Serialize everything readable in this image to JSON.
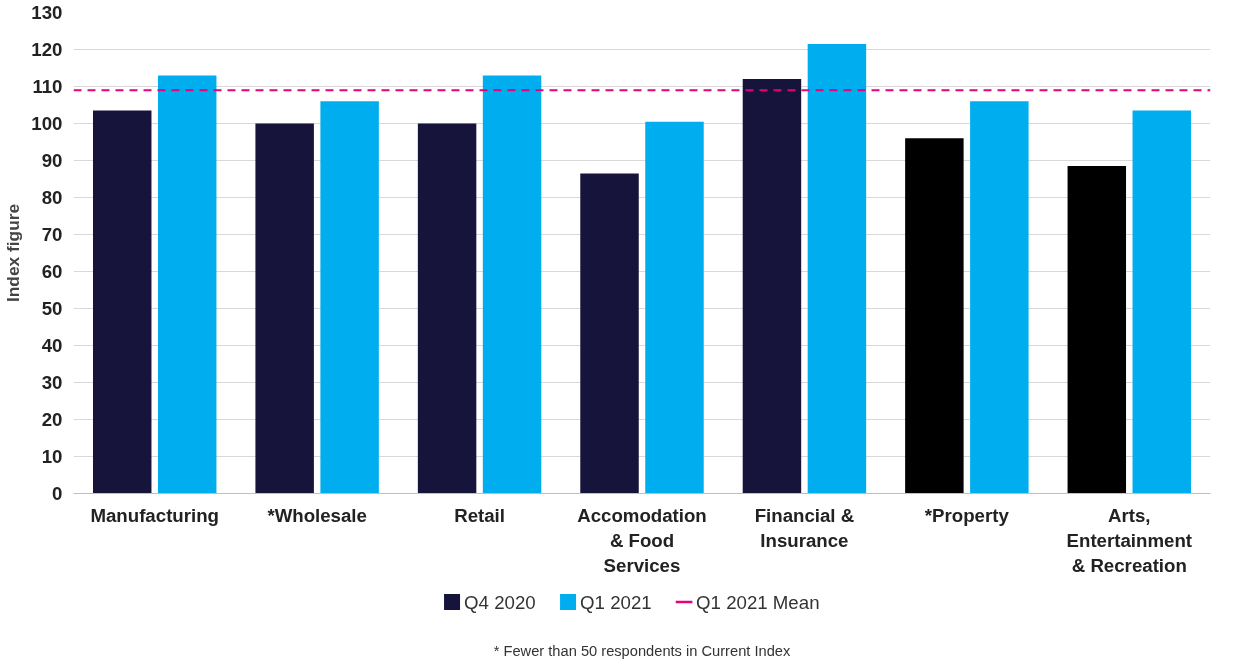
{
  "chart_data": {
    "type": "bar",
    "ylabel": "Index figure",
    "categories": [
      "Manufacturing",
      "*Wholesale",
      "Retail",
      "Accomodation & Food Services",
      "Financial & Insurance",
      "*Property",
      "Arts, Entertainment & Recreation"
    ],
    "series": [
      {
        "name": "Q4 2020",
        "color": "#16143a",
        "colors": [
          "#16143a",
          "#16143a",
          "#16143a",
          "#16143a",
          "#16143a",
          "#000000",
          "#000000"
        ],
        "values": [
          103.5,
          100,
          100,
          86.5,
          112,
          96,
          88.5
        ]
      },
      {
        "name": "Q1 2021",
        "color": "#00aeef",
        "values": [
          113,
          106,
          113,
          100.5,
          121.5,
          106,
          103.5
        ]
      }
    ],
    "ylim": [
      0,
      130
    ],
    "yticks": [
      0,
      10,
      20,
      30,
      40,
      50,
      60,
      70,
      80,
      90,
      100,
      110,
      120,
      130
    ],
    "grid": "y",
    "legend": "bottom",
    "ref_lines": [
      {
        "axis": "y",
        "value": 109,
        "label": "Q1 2021 Mean",
        "color": "#e6007e",
        "line_style": "dashed"
      }
    ],
    "annotations": [
      "* Fewer than 50 respondents in Current Index"
    ]
  }
}
